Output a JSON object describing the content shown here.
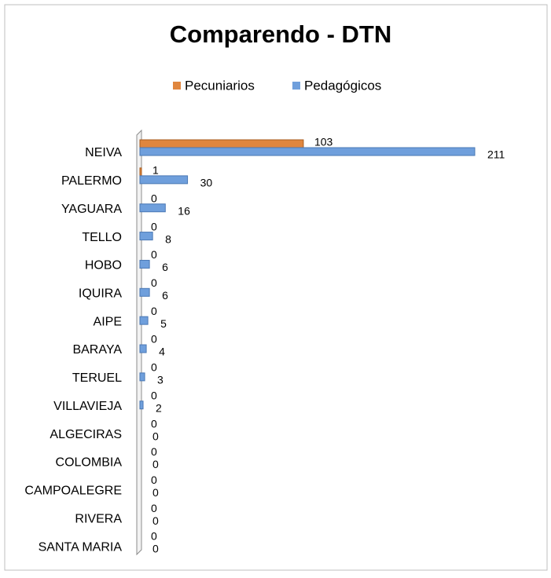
{
  "chart_data": {
    "type": "hbar",
    "title": "Comparendo - DTN",
    "categories": [
      "NEIVA",
      "PALERMO",
      "YAGUARA",
      "TELLO",
      "HOBO",
      "IQUIRA",
      "AIPE",
      "BARAYA",
      "TERUEL",
      "VILLAVIEJA",
      "ALGECIRAS",
      "COLOMBIA",
      "CAMPOALEGRE",
      "RIVERA",
      "SANTA MARIA"
    ],
    "series": [
      {
        "name": "Pecuniarios",
        "color": "#e0863e",
        "values": [
          103,
          1,
          0,
          0,
          0,
          0,
          0,
          0,
          0,
          0,
          0,
          0,
          0,
          0,
          0
        ]
      },
      {
        "name": "Pedagógicos",
        "color": "#6f9fdc",
        "values": [
          211,
          30,
          16,
          8,
          6,
          6,
          5,
          4,
          3,
          2,
          0,
          0,
          0,
          0,
          0
        ]
      }
    ],
    "legend": "top"
  }
}
